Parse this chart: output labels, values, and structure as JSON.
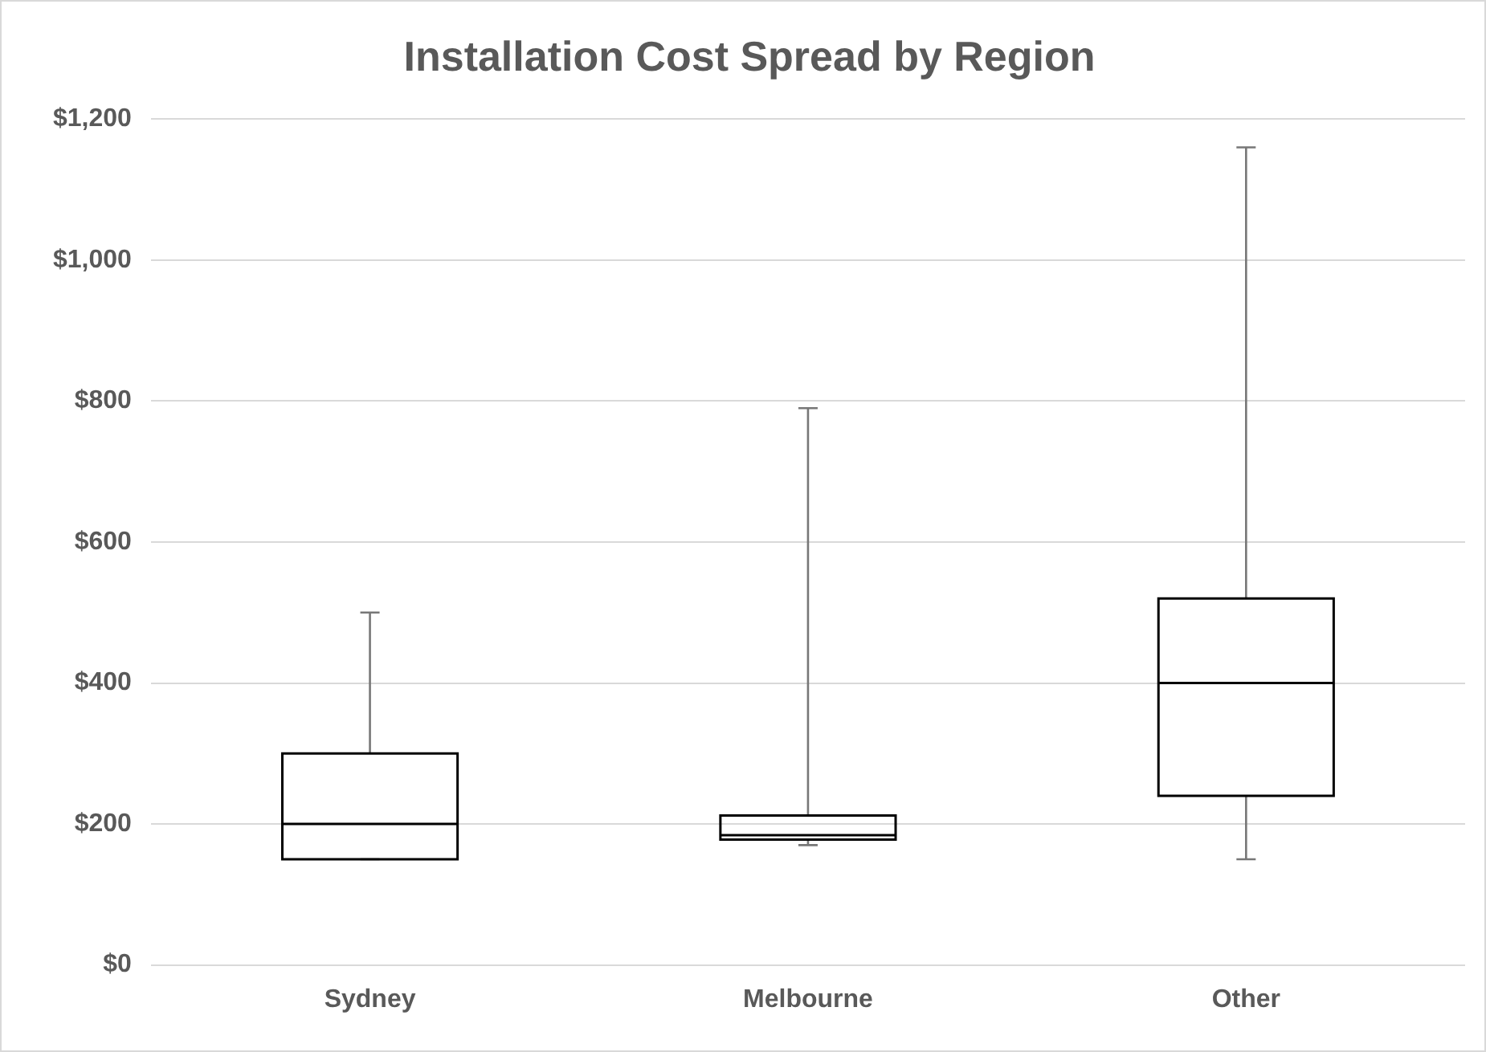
{
  "chart_data": {
    "type": "box",
    "title": "Installation Cost Spread by Region",
    "categories": [
      "Sydney",
      "Melbourne",
      "Other"
    ],
    "boxes": [
      {
        "low": 150,
        "q1": 150,
        "median": 200,
        "q3": 300,
        "high": 500
      },
      {
        "low": 170,
        "q1": 178,
        "median": 184,
        "q3": 212,
        "high": 790
      },
      {
        "low": 150,
        "q1": 240,
        "median": 400,
        "q3": 520,
        "high": 1160
      }
    ],
    "color": "#000000",
    "ylim": [
      0,
      1200
    ],
    "yticks": [
      {
        "value": 0,
        "label": "$0"
      },
      {
        "value": 200,
        "label": "$200"
      },
      {
        "value": 400,
        "label": "$400"
      },
      {
        "value": 600,
        "label": "$600"
      },
      {
        "value": 800,
        "label": "$800"
      },
      {
        "value": 1000,
        "label": "$1,000"
      },
      {
        "value": 1200,
        "label": "$1,200"
      }
    ],
    "grid": "y",
    "legend": false
  }
}
